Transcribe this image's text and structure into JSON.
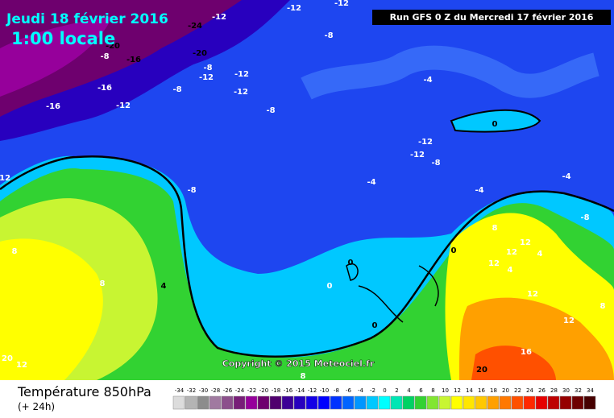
{
  "header": {
    "date": "Jeudi 18 février 2016",
    "time": "1:00 locale",
    "run": "Run GFS 0 Z du Mercredi 17 février 2016"
  },
  "map": {
    "copyright": "Copyright © 2015 Meteociel.fr",
    "labels": [
      "-24",
      "-20",
      "-16",
      "-20",
      "-12",
      "-12",
      "-8",
      "-12",
      "-8",
      "-16",
      "-12",
      "-16",
      "-12",
      "-8",
      "-12",
      "-8",
      "-12",
      "-4",
      "-8",
      "-12",
      "-12",
      "-8",
      "0",
      "-4",
      "-8",
      "-4",
      "-4",
      "-12",
      "-8",
      "0",
      "8",
      "4",
      "8",
      "0",
      "0",
      "12",
      "12",
      "4",
      "12",
      "8",
      "12",
      "16",
      "20",
      "12",
      "20",
      "12",
      "8",
      "0",
      "8",
      "4"
    ]
  },
  "legend": {
    "title": "Température 850hPa",
    "subtitle": "(+ 24h)",
    "ticks": [
      -34,
      -32,
      -30,
      -28,
      -26,
      -24,
      -22,
      -20,
      -18,
      -16,
      -14,
      -12,
      -10,
      -8,
      -6,
      -4,
      -2,
      0,
      2,
      4,
      6,
      8,
      10,
      12,
      14,
      16,
      18,
      20,
      22,
      24,
      26,
      28,
      30,
      32,
      34
    ],
    "colors": [
      "#dcdcdc",
      "#b4b4b4",
      "#8c8c8c",
      "#a07aa0",
      "#8c508c",
      "#781e78",
      "#96009b",
      "#6e006e",
      "#50006e",
      "#3c0096",
      "#2800be",
      "#1400e6",
      "#0000ff",
      "#0032ff",
      "#0064ff",
      "#0096ff",
      "#00c8ff",
      "#00ffff",
      "#00e6b4",
      "#00d264",
      "#32d232",
      "#82e632",
      "#c8f532",
      "#ffff00",
      "#ffe600",
      "#ffc800",
      "#ffa000",
      "#ff7800",
      "#ff5000",
      "#ff2800",
      "#e60000",
      "#be0000",
      "#960000",
      "#6e0000",
      "#460000"
    ]
  }
}
